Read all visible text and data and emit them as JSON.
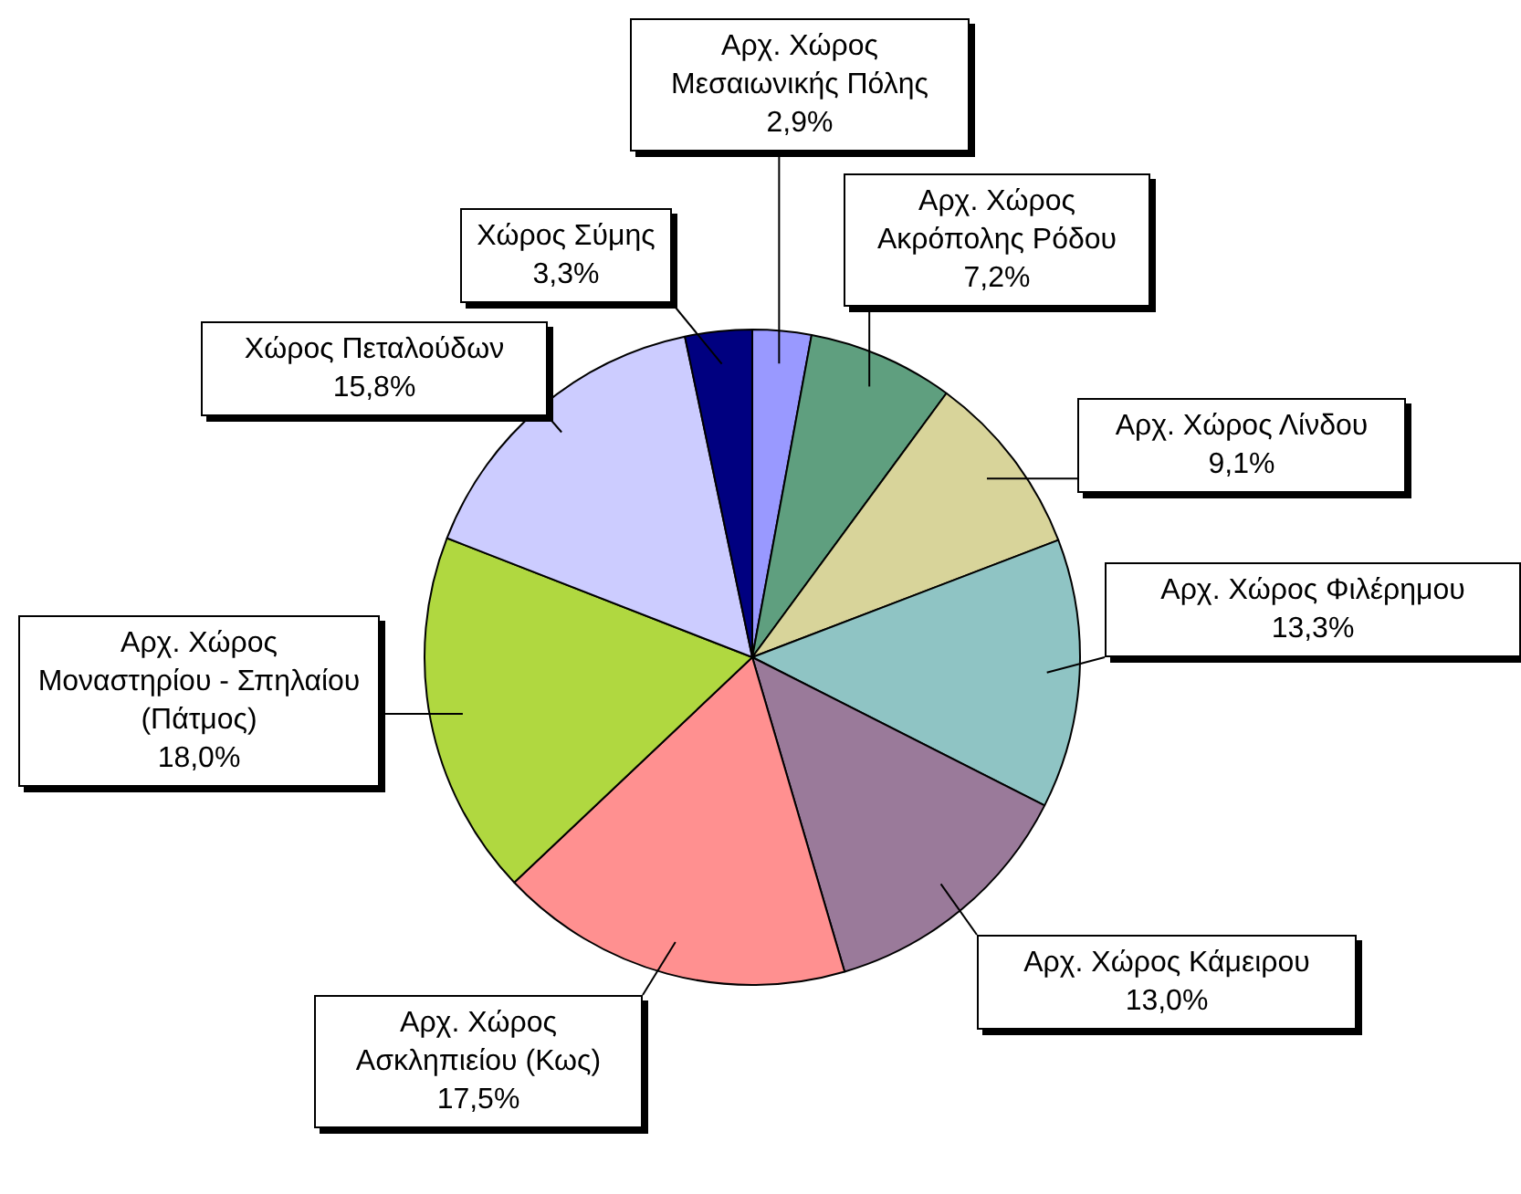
{
  "chart_data": {
    "type": "pie",
    "categories": [
      "Αρχ. Χώρος Μεσαιωνικής Πόλης",
      "Αρχ. Χώρος Ακρόπολης Ρόδου",
      "Αρχ. Χώρος Λίνδου",
      "Αρχ. Χώρος Φιλέρημου",
      "Αρχ. Χώρος Κάμειρου",
      "Αρχ. Χώρος Ασκληπιείου (Κως)",
      "Αρχ. Χώρος Μοναστηρίου - Σπηλαίου (Πάτμος)",
      "Χώρος Πεταλούδων",
      "Χώρος Σύμης"
    ],
    "values": [
      2.9,
      7.2,
      9.1,
      13.3,
      13.0,
      17.5,
      18.0,
      15.8,
      3.3
    ],
    "value_labels": [
      "2,9%",
      "7,2%",
      "9,1%",
      "13,3%",
      "13,0%",
      "17,5%",
      "18,0%",
      "15,8%",
      "3,3%"
    ],
    "colors": [
      "#9999ff",
      "#5f9f7f",
      "#d8d49a",
      "#8fc4c4",
      "#9a7a9a",
      "#ff9090",
      "#b0d840",
      "#ccccff",
      "#000080"
    ],
    "legend": false
  }
}
